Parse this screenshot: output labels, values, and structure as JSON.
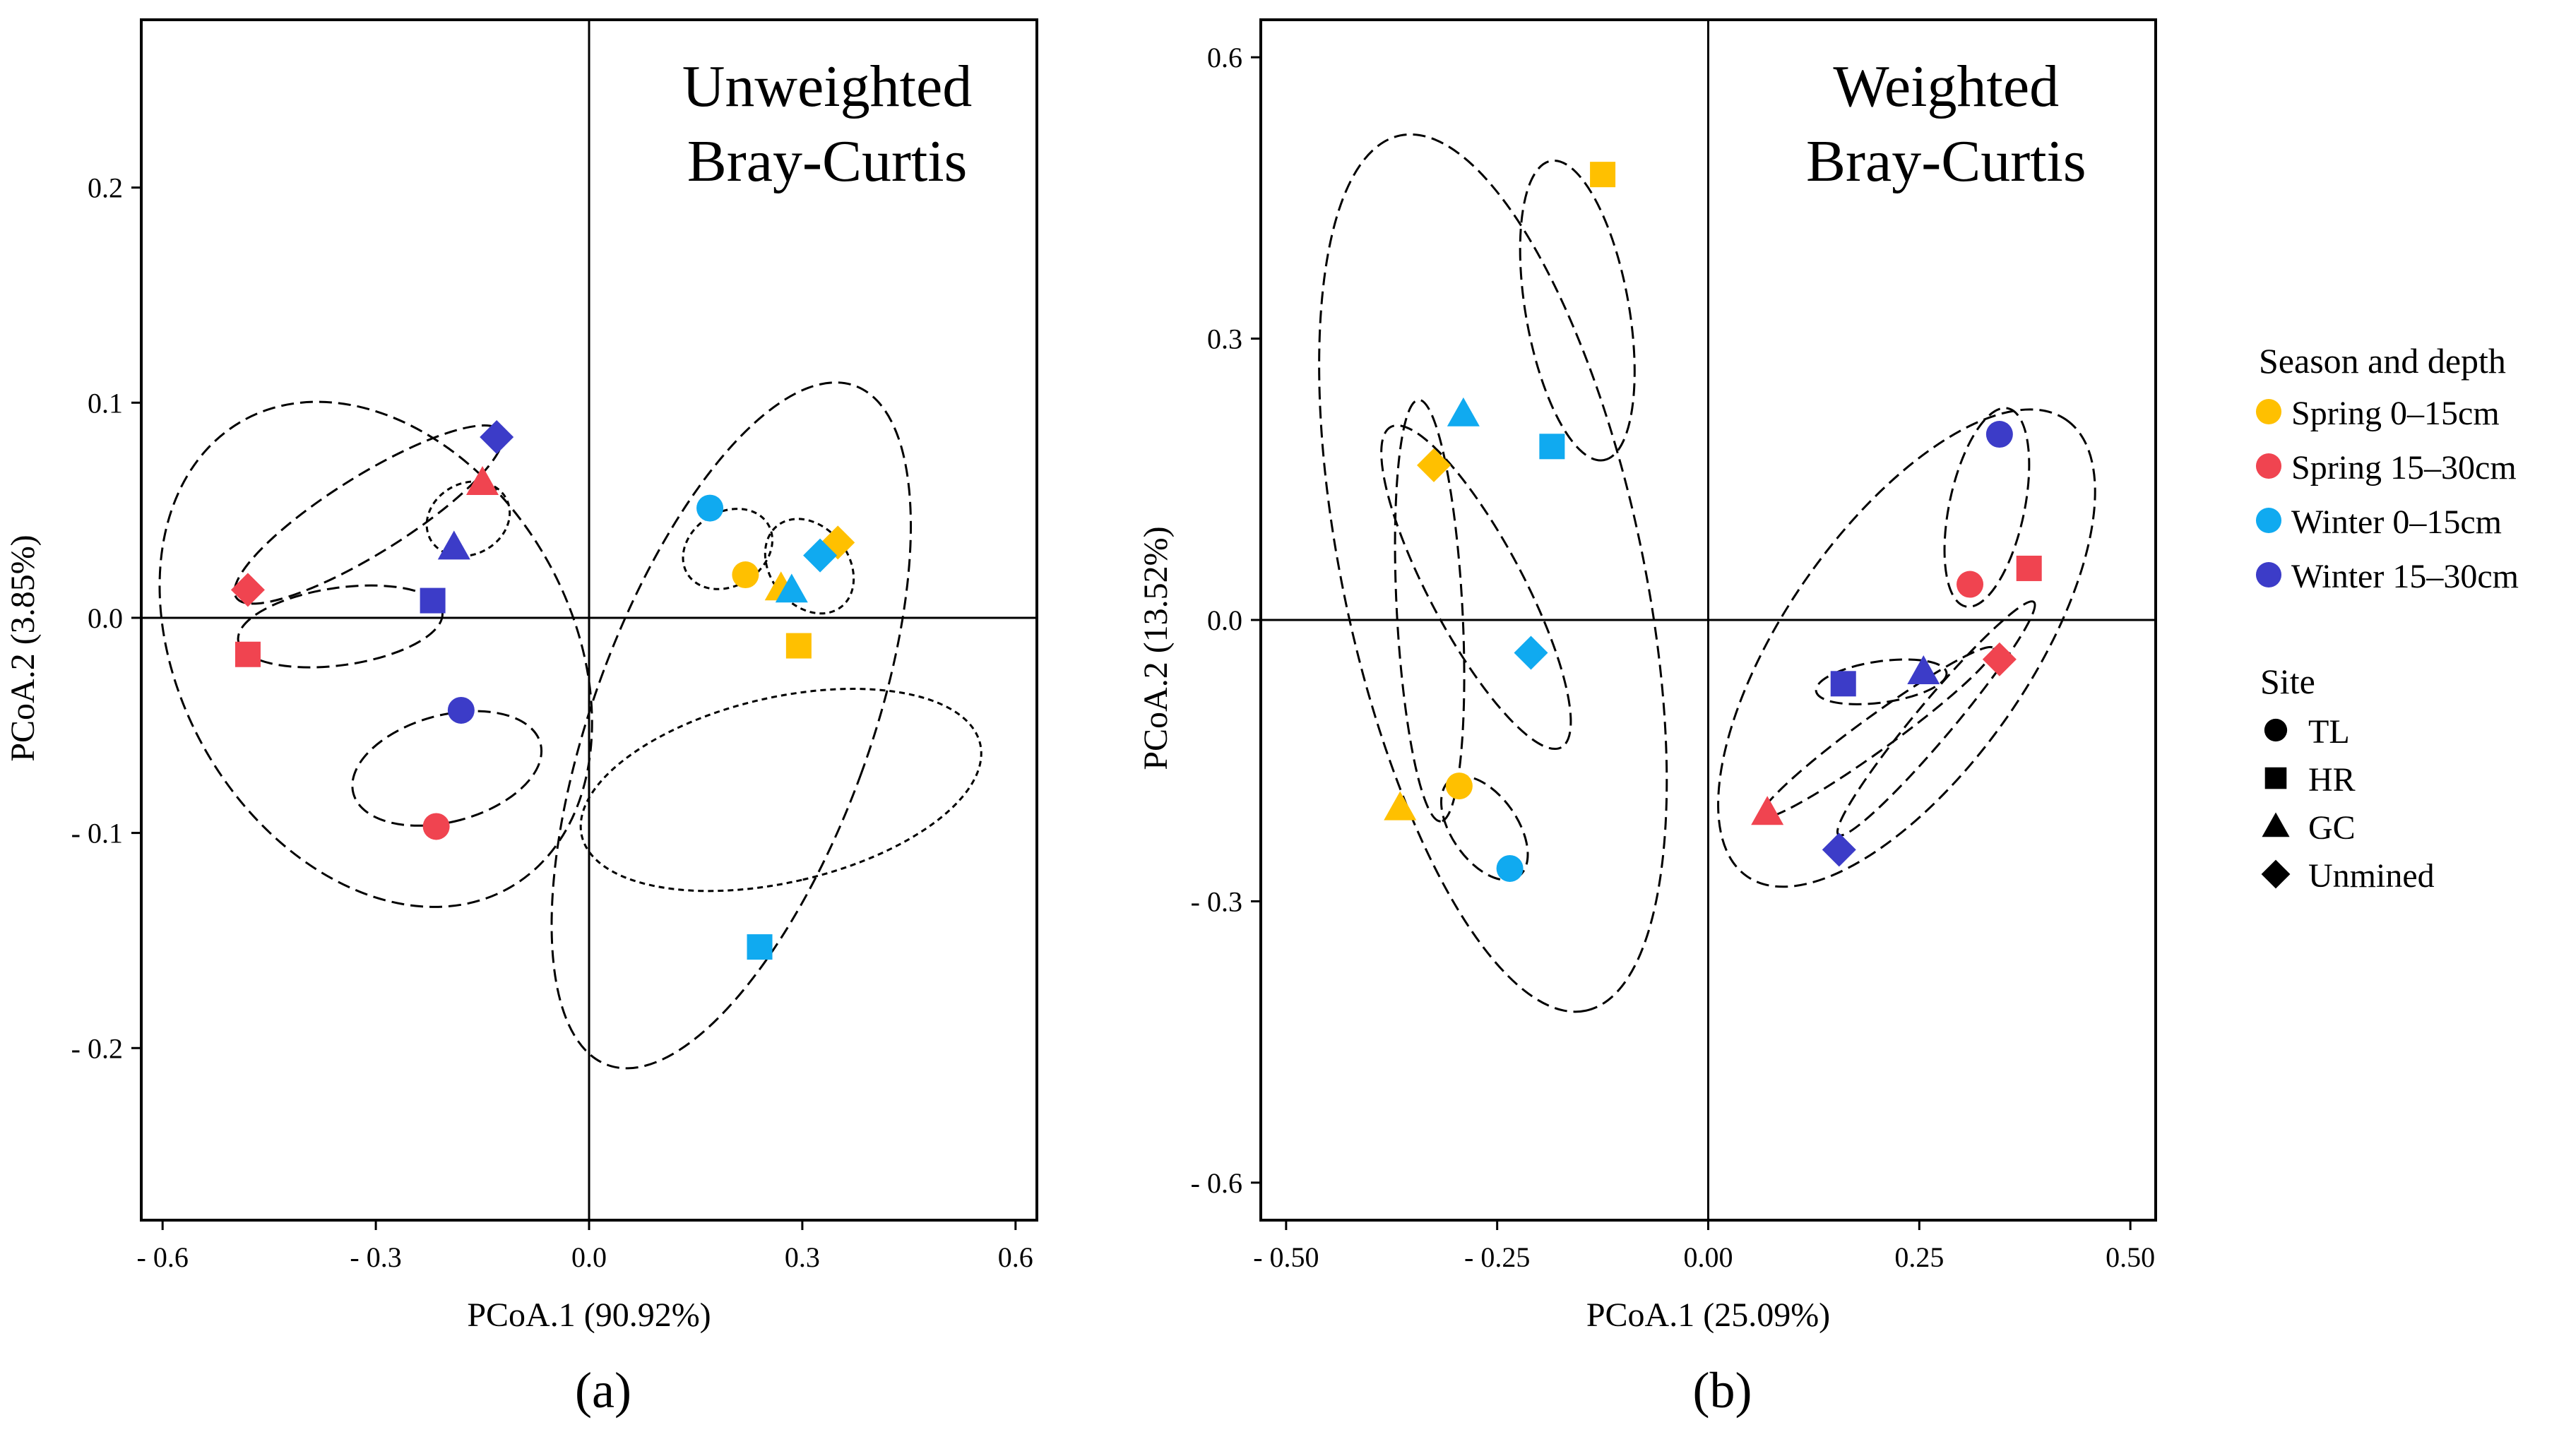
{
  "colors": {
    "spring_0_15": "#FFC000",
    "spring_15_30": "#F04450",
    "winter_0_15": "#10AAF0",
    "winter_15_30": "#3C3CC8"
  },
  "legend": {
    "season_title": "Season and depth",
    "season_items": [
      {
        "key": "spring_0_15",
        "label": "Spring 0–15cm"
      },
      {
        "key": "spring_15_30",
        "label": "Spring 15–30cm"
      },
      {
        "key": "winter_0_15",
        "label": "Winter 0–15cm"
      },
      {
        "key": "winter_15_30",
        "label": "Winter 15–30cm"
      }
    ],
    "site_title": "Site",
    "site_items": [
      {
        "shape": "circle",
        "label": "TL"
      },
      {
        "shape": "square",
        "label": "HR"
      },
      {
        "shape": "triangle",
        "label": "GC"
      },
      {
        "shape": "diamond",
        "label": "Unmined"
      }
    ]
  },
  "chart_data": [
    {
      "type": "scatter",
      "panel_label": "(a)",
      "title_lines": [
        "Unweighted",
        "Bray-Curtis"
      ],
      "xlabel": "PCoA.1 (90.92%)",
      "ylabel": "PCoA.2 (3.85%)",
      "xlim": [
        -0.63,
        0.63
      ],
      "ylim": [
        -0.28,
        0.278
      ],
      "xticks": [
        -0.6,
        -0.3,
        0.0,
        0.3,
        0.6
      ],
      "xtick_labels": [
        "- 0.6",
        "- 0.3",
        "0.0",
        "0.3",
        "0.6"
      ],
      "yticks": [
        -0.2,
        -0.1,
        0.0,
        0.1,
        0.2
      ],
      "ytick_labels": [
        "- 0.2",
        "- 0.1",
        "0.0",
        "0.1",
        "0.2"
      ],
      "points": [
        {
          "x": -0.48,
          "y": 0.013,
          "season": "spring_15_30",
          "site": "diamond"
        },
        {
          "x": -0.48,
          "y": -0.017,
          "season": "spring_15_30",
          "site": "square"
        },
        {
          "x": -0.22,
          "y": 0.008,
          "season": "winter_15_30",
          "site": "square"
        },
        {
          "x": -0.19,
          "y": 0.033,
          "season": "winter_15_30",
          "site": "triangle"
        },
        {
          "x": -0.15,
          "y": 0.063,
          "season": "spring_15_30",
          "site": "triangle"
        },
        {
          "x": -0.13,
          "y": 0.084,
          "season": "winter_15_30",
          "site": "diamond"
        },
        {
          "x": -0.18,
          "y": -0.043,
          "season": "winter_15_30",
          "site": "circle"
        },
        {
          "x": -0.215,
          "y": -0.097,
          "season": "spring_15_30",
          "site": "circle"
        },
        {
          "x": 0.17,
          "y": 0.051,
          "season": "winter_0_15",
          "site": "circle"
        },
        {
          "x": 0.22,
          "y": 0.02,
          "season": "spring_0_15",
          "site": "circle"
        },
        {
          "x": 0.27,
          "y": 0.014,
          "season": "spring_0_15",
          "site": "triangle"
        },
        {
          "x": 0.285,
          "y": 0.013,
          "season": "winter_0_15",
          "site": "triangle"
        },
        {
          "x": 0.35,
          "y": 0.035,
          "season": "spring_0_15",
          "site": "diamond"
        },
        {
          "x": 0.325,
          "y": 0.029,
          "season": "winter_0_15",
          "site": "diamond"
        },
        {
          "x": 0.295,
          "y": -0.013,
          "season": "spring_0_15",
          "site": "square"
        },
        {
          "x": 0.24,
          "y": -0.153,
          "season": "winter_0_15",
          "site": "square"
        }
      ],
      "ellipses": [
        {
          "cx": -0.3,
          "cy": -0.017,
          "rx": 0.275,
          "ry": 0.125,
          "angle": 30,
          "style": "long"
        },
        {
          "cx": -0.31,
          "cy": 0.048,
          "rx": 0.22,
          "ry": 0.018,
          "angle": 32,
          "style": "long"
        },
        {
          "cx": -0.17,
          "cy": 0.046,
          "rx": 0.05,
          "ry": 0.02,
          "angle": -62,
          "style": "short"
        },
        {
          "cx": -0.35,
          "cy": -0.004,
          "rx": 0.145,
          "ry": 0.018,
          "angle": 8,
          "style": "long"
        },
        {
          "cx": -0.2,
          "cy": -0.07,
          "rx": 0.075,
          "ry": 0.045,
          "angle": -75,
          "style": "long"
        },
        {
          "cx": 0.2,
          "cy": -0.05,
          "rx": 0.195,
          "ry": 0.168,
          "angle": -20,
          "style": "long"
        },
        {
          "cx": 0.195,
          "cy": 0.032,
          "rx": 0.052,
          "ry": 0.022,
          "angle": -58,
          "style": "short"
        },
        {
          "cx": 0.31,
          "cy": 0.024,
          "rx": 0.055,
          "ry": 0.024,
          "angle": 38,
          "style": "short"
        },
        {
          "cx": 0.27,
          "cy": -0.08,
          "rx": 0.13,
          "ry": 0.095,
          "angle": -77,
          "style": "short"
        }
      ]
    },
    {
      "type": "scatter",
      "panel_label": "(b)",
      "title_lines": [
        "Weighted",
        "Bray-Curtis"
      ],
      "xlabel": "PCoA.1 (25.09%)",
      "ylabel": "PCoA.2 (13.52%)",
      "xlim": [
        -0.53,
        0.53
      ],
      "ylim": [
        -0.64,
        0.64
      ],
      "xticks": [
        -0.5,
        -0.25,
        0.0,
        0.25,
        0.5
      ],
      "xtick_labels": [
        "- 0.50",
        "- 0.25",
        "0.00",
        "0.25",
        "0.50"
      ],
      "yticks": [
        -0.6,
        -0.3,
        0.0,
        0.3,
        0.6
      ],
      "ytick_labels": [
        "- 0.6",
        "- 0.3",
        "0.0",
        "0.3",
        "0.6"
      ],
      "points": [
        {
          "x": -0.125,
          "y": 0.475,
          "season": "spring_0_15",
          "site": "square"
        },
        {
          "x": -0.29,
          "y": 0.22,
          "season": "winter_0_15",
          "site": "triangle"
        },
        {
          "x": -0.185,
          "y": 0.185,
          "season": "winter_0_15",
          "site": "square"
        },
        {
          "x": -0.325,
          "y": 0.165,
          "season": "spring_0_15",
          "site": "diamond"
        },
        {
          "x": -0.21,
          "y": -0.035,
          "season": "winter_0_15",
          "site": "diamond"
        },
        {
          "x": -0.365,
          "y": -0.2,
          "season": "spring_0_15",
          "site": "triangle"
        },
        {
          "x": -0.295,
          "y": -0.177,
          "season": "spring_0_15",
          "site": "circle"
        },
        {
          "x": -0.235,
          "y": -0.265,
          "season": "winter_0_15",
          "site": "circle"
        },
        {
          "x": 0.345,
          "y": 0.198,
          "season": "winter_15_30",
          "site": "circle"
        },
        {
          "x": 0.31,
          "y": 0.038,
          "season": "spring_15_30",
          "site": "circle"
        },
        {
          "x": 0.38,
          "y": 0.055,
          "season": "spring_15_30",
          "site": "square"
        },
        {
          "x": 0.16,
          "y": -0.068,
          "season": "winter_15_30",
          "site": "square"
        },
        {
          "x": 0.255,
          "y": -0.055,
          "season": "winter_15_30",
          "site": "triangle"
        },
        {
          "x": 0.345,
          "y": -0.042,
          "season": "spring_15_30",
          "site": "diamond"
        },
        {
          "x": 0.07,
          "y": -0.205,
          "season": "spring_15_30",
          "site": "triangle"
        },
        {
          "x": 0.155,
          "y": -0.245,
          "season": "winter_15_30",
          "site": "diamond"
        }
      ],
      "ellipses": [
        {
          "cx": -0.255,
          "cy": 0.05,
          "rx": 0.53,
          "ry": 0.16,
          "angle": -78,
          "style": "long"
        },
        {
          "cx": -0.155,
          "cy": 0.33,
          "rx": 0.18,
          "ry": 0.055,
          "angle": -80,
          "style": "long"
        },
        {
          "cx": -0.275,
          "cy": 0.035,
          "rx": 0.215,
          "ry": 0.05,
          "angle": -62,
          "style": "long"
        },
        {
          "cx": -0.33,
          "cy": 0.01,
          "rx": 0.25,
          "ry": 0.035,
          "angle": -87,
          "style": "long"
        },
        {
          "cx": -0.265,
          "cy": -0.222,
          "rx": 0.07,
          "ry": 0.035,
          "angle": -55,
          "style": "long"
        },
        {
          "cx": 0.235,
          "cy": -0.03,
          "rx": 0.33,
          "ry": 0.13,
          "angle": 55,
          "style": "long"
        },
        {
          "cx": 0.33,
          "cy": 0.12,
          "rx": 0.12,
          "ry": 0.04,
          "angle": 78,
          "style": "long"
        },
        {
          "cx": 0.205,
          "cy": -0.066,
          "rx": 0.078,
          "ry": 0.022,
          "angle": 8,
          "style": "long"
        },
        {
          "cx": 0.2,
          "cy": -0.12,
          "rx": 0.17,
          "ry": 0.018,
          "angle": 36,
          "style": "long"
        },
        {
          "cx": 0.27,
          "cy": -0.105,
          "rx": 0.18,
          "ry": 0.02,
          "angle": 50,
          "style": "long"
        }
      ]
    }
  ]
}
